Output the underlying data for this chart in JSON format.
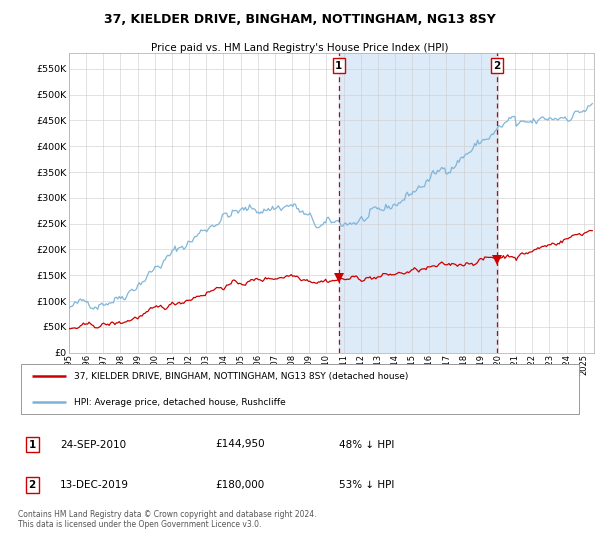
{
  "title": "37, KIELDER DRIVE, BINGHAM, NOTTINGHAM, NG13 8SY",
  "subtitle": "Price paid vs. HM Land Registry's House Price Index (HPI)",
  "legend_line1": "37, KIELDER DRIVE, BINGHAM, NOTTINGHAM, NG13 8SY (detached house)",
  "legend_line2": "HPI: Average price, detached house, Rushcliffe",
  "annotation1_date": "24-SEP-2010",
  "annotation1_price": "£144,950",
  "annotation1_hpi": "48% ↓ HPI",
  "annotation2_date": "13-DEC-2019",
  "annotation2_price": "£180,000",
  "annotation2_hpi": "53% ↓ HPI",
  "footer": "Contains HM Land Registry data © Crown copyright and database right 2024.\nThis data is licensed under the Open Government Licence v3.0.",
  "ylabel_ticks": [
    "£0",
    "£50K",
    "£100K",
    "£150K",
    "£200K",
    "£250K",
    "£300K",
    "£350K",
    "£400K",
    "£450K",
    "£500K",
    "£550K"
  ],
  "ytick_values": [
    0,
    50000,
    100000,
    150000,
    200000,
    250000,
    300000,
    350000,
    400000,
    450000,
    500000,
    550000
  ],
  "ylim": [
    0,
    580000
  ],
  "xlim_start": 1995.0,
  "xlim_end": 2025.6,
  "sale1_x": 2010.73,
  "sale1_y": 144950,
  "sale2_x": 2019.95,
  "sale2_y": 180000,
  "hpi_color": "#7ab3d8",
  "property_color": "#cc0000",
  "vline_color": "#cc0000",
  "shade_color": "#ddeaf7",
  "grid_color": "#cccccc",
  "bg_color": "#ffffff"
}
